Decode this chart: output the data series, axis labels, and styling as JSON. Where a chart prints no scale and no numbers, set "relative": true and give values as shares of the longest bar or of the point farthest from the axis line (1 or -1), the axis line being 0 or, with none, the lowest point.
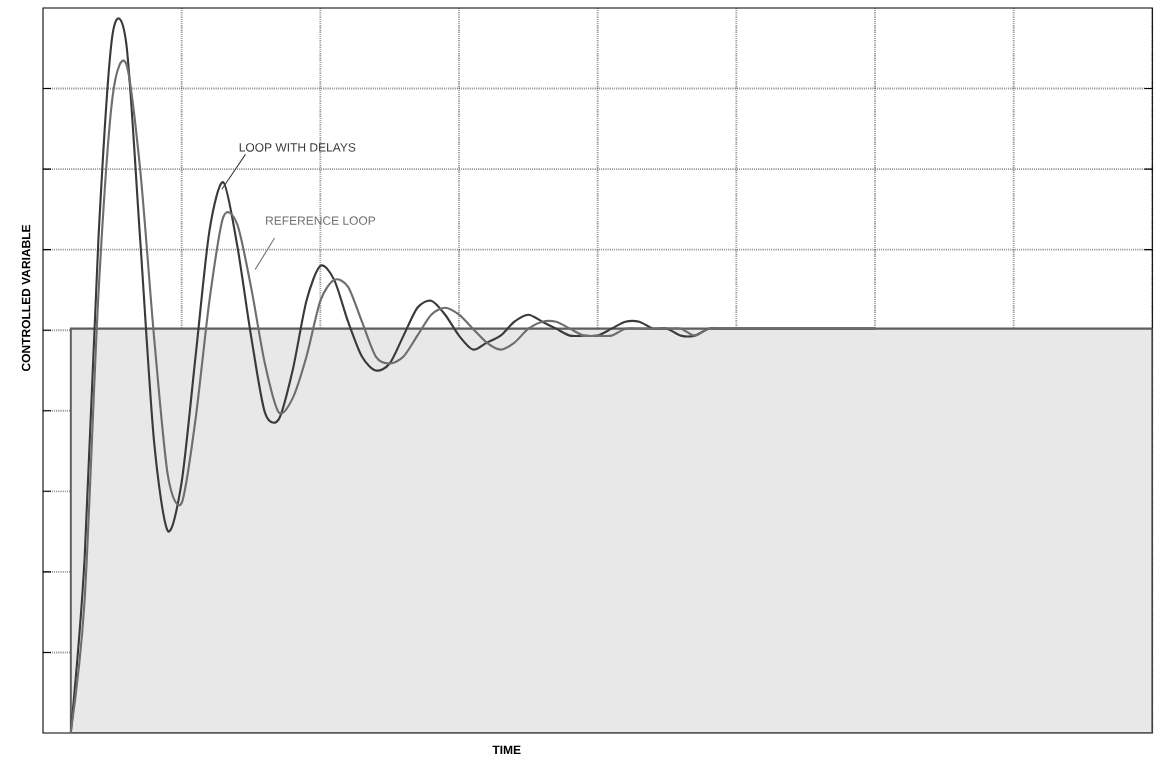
{
  "chart_data": {
    "type": "line",
    "relative": true,
    "xlabel": "TIME",
    "ylabel": "CONTROLLED VARIABLE",
    "grid": true,
    "categories": [
      null,
      null,
      null,
      null,
      null,
      null,
      null,
      null,
      null,
      null,
      null,
      null,
      null,
      null,
      null,
      null,
      null,
      null,
      null,
      null,
      null,
      null,
      null,
      null,
      null,
      null,
      null,
      null,
      null,
      null,
      null,
      null,
      null,
      null,
      null,
      null,
      null,
      null,
      null,
      null,
      null,
      null,
      null,
      null,
      null,
      null,
      null,
      null,
      null,
      null,
      null,
      null,
      null,
      null,
      null,
      null,
      null,
      null,
      null,
      null,
      null,
      null,
      null,
      null,
      null,
      null,
      null,
      null,
      null,
      null,
      null,
      null,
      null,
      null,
      null,
      null,
      null,
      null,
      null,
      null,
      null
    ],
    "series": [
      {
        "type": "area",
        "color": "#e8e8e8",
        "values": [
          null,
          null,
          0.58,
          0.58,
          0.58,
          0.58,
          0.58,
          0.58,
          0.58,
          0.58,
          0.58,
          0.58,
          0.58,
          0.58,
          0.58,
          0.58,
          0.58,
          0.58,
          0.58,
          0.58,
          0.58,
          0.58,
          0.58,
          0.58,
          0.58,
          0.58,
          0.58,
          0.58,
          0.58,
          0.58,
          0.58,
          0.58,
          0.58,
          0.58,
          0.58,
          0.58,
          0.58,
          0.58,
          0.58,
          0.58,
          0.58,
          0.58,
          0.58,
          0.58,
          0.58,
          0.58,
          0.58,
          0.58,
          0.58,
          0.58,
          0.58,
          0.58,
          0.58,
          0.58,
          0.58,
          0.58,
          0.58,
          0.58,
          0.58,
          0.58,
          0.58,
          0.58,
          0.58,
          0.58,
          0.58,
          0.58,
          0.58,
          0.58,
          0.58,
          0.58,
          0.58,
          0.58,
          0.58,
          0.58,
          0.58,
          0.58,
          0.58,
          0.58,
          0.58,
          0.58,
          0.58
        ]
      },
      {
        "name": "LOOP WITH DELAYS",
        "color": "#3a3a3a",
        "values": [
          null,
          null,
          0,
          0.25,
          0.71,
          1,
          0.99,
          0.71,
          0.42,
          0.29,
          0.36,
          0.54,
          0.72,
          0.79,
          0.7,
          0.57,
          0.46,
          0.45,
          0.52,
          0.62,
          0.67,
          0.65,
          0.59,
          0.54,
          0.52,
          0.53,
          0.57,
          0.61,
          0.62,
          0.6,
          0.57,
          0.55,
          0.56,
          0.57,
          0.59,
          0.6,
          0.59,
          0.58,
          0.57,
          0.57,
          0.57,
          0.58,
          0.59,
          0.59,
          0.58,
          0.58,
          0.57,
          0.57,
          0.58,
          0.58,
          0.58,
          0.58,
          0.58,
          0.58,
          0.58,
          0.58,
          0.58,
          0.58,
          0.58,
          0.58,
          0.58,
          null,
          null,
          null,
          null,
          null,
          null,
          null,
          null,
          null,
          null,
          null,
          null,
          null,
          null,
          null,
          null,
          null,
          null,
          null,
          null
        ]
      },
      {
        "name": "REFERENCE LOOP",
        "color": "#6e6e6e",
        "values": [
          null,
          null,
          0,
          0.19,
          0.63,
          0.91,
          0.96,
          0.81,
          0.57,
          0.37,
          0.33,
          0.45,
          0.62,
          0.74,
          0.73,
          0.64,
          0.53,
          0.46,
          0.48,
          0.54,
          0.62,
          0.65,
          0.64,
          0.59,
          0.54,
          0.53,
          0.54,
          0.57,
          0.6,
          0.61,
          0.6,
          0.58,
          0.56,
          0.55,
          0.56,
          0.58,
          0.59,
          0.59,
          0.58,
          0.57,
          0.57,
          0.57,
          0.58,
          0.58,
          0.58,
          0.58,
          0.58,
          0.57,
          0.58,
          0.58,
          0.58,
          0.58,
          0.58,
          0.58,
          0.58,
          0.58,
          0.58,
          0.58,
          0.58,
          0.58,
          0.58,
          null,
          null,
          null,
          null,
          null,
          null,
          null,
          null,
          null,
          null,
          null,
          null,
          null,
          null,
          null,
          null,
          null,
          null,
          null,
          null
        ]
      }
    ]
  }
}
